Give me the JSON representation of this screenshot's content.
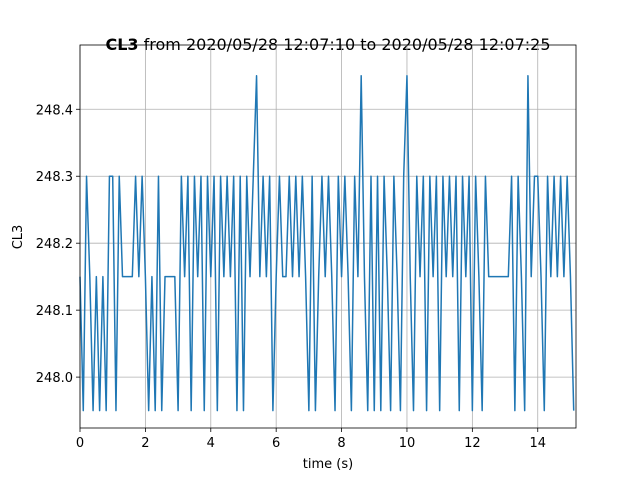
{
  "chart_data": {
    "type": "line",
    "title_bold": "CL3",
    "title": " from 2020/05/28 12:07:10 to 2020/05/28 12:07:25",
    "x_label": "time (s)",
    "y_label": "CL3",
    "x": [
      0,
      0.1,
      0.2,
      0.3,
      0.4,
      0.5,
      0.6,
      0.7,
      0.8,
      0.9,
      1,
      1.1,
      1.2,
      1.3,
      1.4,
      1.5,
      1.6,
      1.7,
      1.8,
      1.9,
      2,
      2.1,
      2.2,
      2.3,
      2.4,
      2.5,
      2.6,
      2.7,
      2.8,
      2.9,
      3,
      3.1,
      3.2,
      3.3,
      3.4,
      3.5,
      3.6,
      3.7,
      3.8,
      3.9,
      4,
      4.1,
      4.2,
      4.3,
      4.4,
      4.5,
      4.6,
      4.7,
      4.8,
      4.9,
      5,
      5.1,
      5.2,
      5.3,
      5.4,
      5.5,
      5.6,
      5.7,
      5.8,
      5.9,
      6,
      6.1,
      6.2,
      6.3,
      6.4,
      6.5,
      6.6,
      6.7,
      6.8,
      6.9,
      7,
      7.1,
      7.2,
      7.3,
      7.4,
      7.5,
      7.6,
      7.7,
      7.8,
      7.9,
      8,
      8.1,
      8.2,
      8.3,
      8.4,
      8.5,
      8.6,
      8.7,
      8.8,
      8.9,
      9,
      9.1,
      9.2,
      9.3,
      9.4,
      9.5,
      9.6,
      9.7,
      9.8,
      9.9,
      10,
      10.1,
      10.2,
      10.3,
      10.4,
      10.5,
      10.6,
      10.7,
      10.8,
      10.9,
      11,
      11.1,
      11.2,
      11.3,
      11.4,
      11.5,
      11.6,
      11.7,
      11.8,
      11.9,
      12,
      12.1,
      12.2,
      12.3,
      12.4,
      12.5,
      12.6,
      12.7,
      12.8,
      12.9,
      13,
      13.1,
      13.2,
      13.3,
      13.4,
      13.5,
      13.6,
      13.7,
      13.8,
      13.9,
      14,
      14.1,
      14.2,
      14.3,
      14.4,
      14.5,
      14.6,
      14.7,
      14.8,
      14.9,
      15,
      15.1
    ],
    "series": [
      {
        "color": "#1f77b4",
        "values": [
          248.15,
          247.95,
          248.3,
          248.15,
          247.95,
          248.15,
          247.95,
          248.15,
          247.95,
          248.3,
          248.3,
          247.95,
          248.3,
          248.15,
          248.15,
          248.15,
          248.15,
          248.3,
          248.15,
          248.3,
          248.15,
          247.95,
          248.15,
          247.95,
          248.3,
          247.95,
          248.15,
          248.15,
          248.15,
          248.15,
          247.95,
          248.3,
          248.15,
          248.3,
          247.95,
          248.3,
          248.15,
          248.3,
          247.95,
          248.3,
          248.15,
          248.3,
          247.95,
          248.3,
          248.15,
          248.3,
          248.15,
          248.3,
          247.95,
          248.3,
          247.95,
          248.3,
          248.15,
          248.3,
          248.45,
          248.15,
          248.3,
          248.15,
          248.3,
          247.95,
          248.15,
          248.3,
          248.15,
          248.15,
          248.3,
          248.15,
          248.3,
          248.15,
          248.3,
          248.15,
          247.95,
          248.3,
          247.95,
          248.15,
          248.3,
          248.15,
          248.3,
          248.15,
          247.95,
          248.3,
          248.15,
          248.3,
          248.15,
          247.95,
          248.3,
          248.15,
          248.45,
          248.15,
          247.95,
          248.3,
          247.95,
          248.3,
          247.95,
          248.3,
          248.15,
          247.95,
          248.3,
          248.15,
          247.95,
          248.3,
          248.45,
          248.15,
          247.95,
          248.3,
          248.15,
          248.3,
          247.95,
          248.3,
          248.15,
          248.3,
          247.95,
          248.3,
          248.15,
          248.3,
          248.15,
          248.3,
          247.95,
          248.3,
          248.15,
          248.3,
          247.95,
          248.3,
          248.15,
          247.95,
          248.3,
          248.15,
          248.15,
          248.15,
          248.15,
          248.15,
          248.15,
          248.15,
          248.3,
          247.95,
          248.3,
          248.15,
          247.95,
          248.45,
          248.15,
          248.3,
          248.3,
          248.15,
          247.95,
          248.3,
          248.15,
          248.3,
          248.15,
          248.3,
          248.15,
          248.3,
          248.15,
          247.95
        ]
      }
    ],
    "xlim": [
      0,
      15.17
    ],
    "ylim": [
      247.924,
      248.496
    ],
    "xticks": [
      0,
      2,
      4,
      6,
      8,
      10,
      12,
      14
    ],
    "yticks": [
      {
        "value": 248.0,
        "label": "248.0"
      },
      248.1,
      248.2,
      248.3,
      248.4
    ],
    "grid": true
  }
}
